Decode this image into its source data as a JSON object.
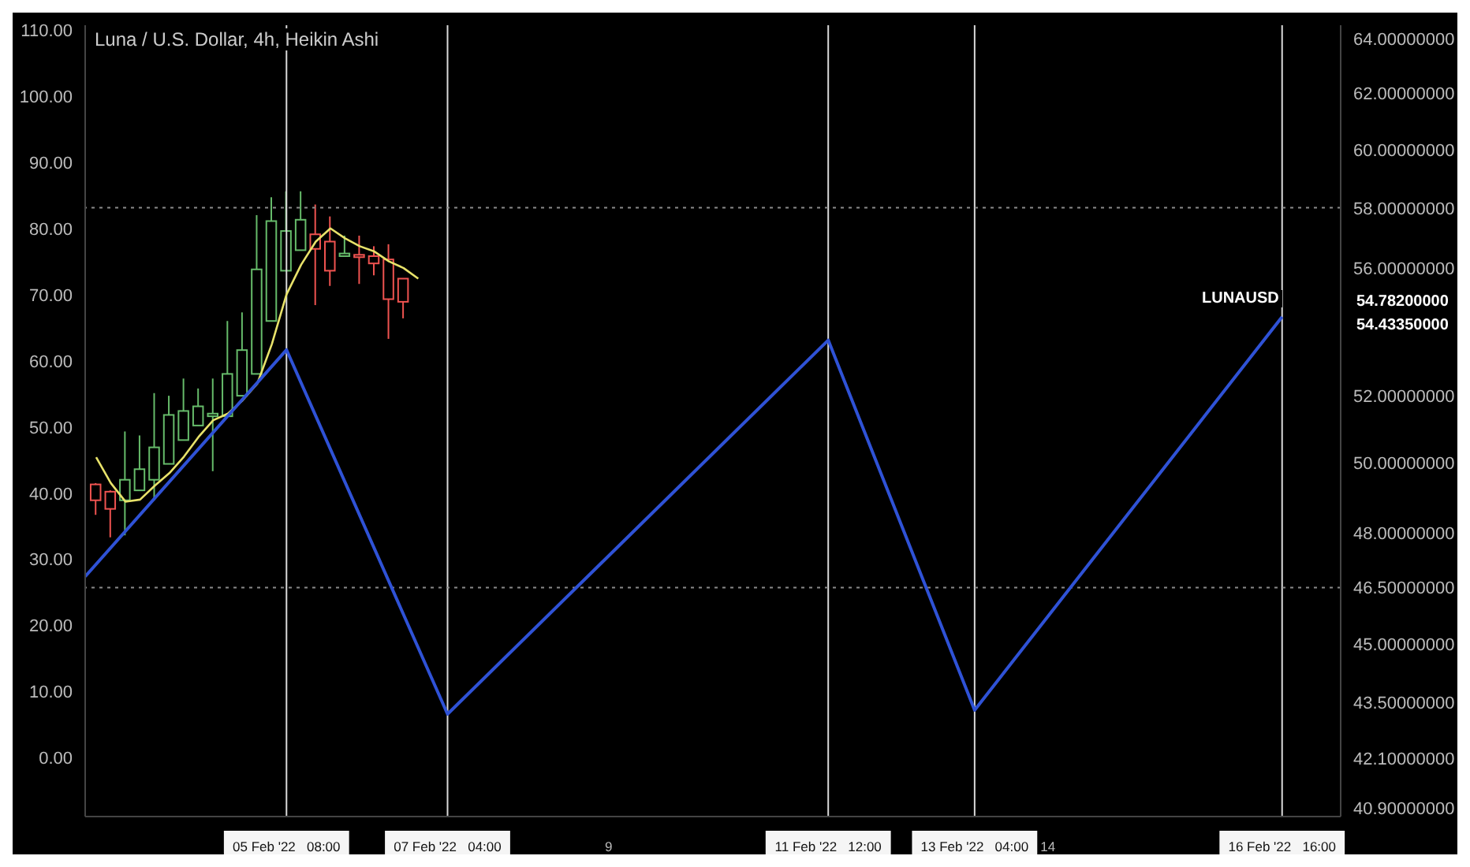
{
  "chart_data": {
    "type": "candlestick",
    "title": "Luna / U.S. Dollar, 4h, Heikin Ashi",
    "series": [
      {
        "x": [
          "2022-02-03T04:00",
          "2022-02-03T08:00",
          "2022-02-03T12:00",
          "2022-02-03T16:00",
          "2022-02-03T20:00",
          "2022-02-04T00:00",
          "2022-02-04T04:00",
          "2022-02-04T08:00",
          "2022-02-04T12:00",
          "2022-02-04T16:00",
          "2022-02-04T20:00",
          "2022-02-05T00:00",
          "2022-02-05T04:00",
          "2022-02-05T08:00",
          "2022-02-05T12:00",
          "2022-02-05T16:00",
          "2022-02-05T20:00",
          "2022-02-06T00:00",
          "2022-02-06T04:00",
          "2022-02-06T08:00",
          "2022-02-06T12:00",
          "2022-02-06T16:00"
        ],
        "ohlc": [
          [
            41.3,
            41.5,
            36.7,
            38.9
          ],
          [
            40.2,
            40.4,
            33.3,
            37.6
          ],
          [
            38.9,
            49.3,
            33.6,
            42.0
          ],
          [
            40.4,
            48.7,
            40.4,
            43.6
          ],
          [
            42.0,
            55.1,
            38.9,
            46.9
          ],
          [
            44.4,
            54.7,
            44.4,
            51.8
          ],
          [
            48.0,
            57.3,
            48.0,
            52.4
          ],
          [
            50.2,
            55.8,
            50.2,
            53.1
          ],
          [
            51.6,
            57.3,
            43.3,
            52.0
          ],
          [
            51.6,
            66.0,
            51.6,
            58.0
          ],
          [
            54.7,
            67.3,
            54.7,
            61.6
          ],
          [
            58.0,
            82.0,
            58.0,
            73.8
          ],
          [
            66.0,
            84.7,
            66.0,
            81.1
          ],
          [
            73.6,
            85.6,
            73.6,
            79.6
          ],
          [
            76.7,
            85.6,
            76.7,
            81.3
          ],
          [
            79.1,
            83.6,
            68.4,
            76.9
          ],
          [
            78.0,
            81.8,
            71.3,
            73.6
          ],
          [
            75.8,
            78.9,
            75.8,
            76.2
          ],
          [
            76.0,
            78.9,
            71.6,
            75.8
          ],
          [
            75.8,
            77.3,
            72.9,
            74.7
          ],
          [
            75.3,
            77.6,
            63.3,
            69.3
          ],
          [
            72.4,
            72.4,
            66.4,
            68.9
          ]
        ],
        "colors": [
          "#ef5350",
          "#ef5350",
          "#66bb6a",
          "#66bb6a",
          "#66bb6a",
          "#66bb6a",
          "#66bb6a",
          "#66bb6a",
          "#66bb6a",
          "#66bb6a",
          "#66bb6a",
          "#66bb6a",
          "#66bb6a",
          "#66bb6a",
          "#66bb6a",
          "#ef5350",
          "#ef5350",
          "#66bb6a",
          "#ef5350",
          "#ef5350",
          "#ef5350",
          "#ef5350"
        ]
      },
      {
        "type": "line",
        "color": "#e8e26a",
        "x": [
          "2022-02-03T04:00",
          "2022-02-03T08:00",
          "2022-02-03T12:00",
          "2022-02-03T16:00",
          "2022-02-03T20:00",
          "2022-02-04T00:00",
          "2022-02-04T04:00",
          "2022-02-04T08:00",
          "2022-02-04T12:00",
          "2022-02-04T16:00",
          "2022-02-04T20:00",
          "2022-02-05T00:00",
          "2022-02-05T04:00",
          "2022-02-05T08:00",
          "2022-02-05T12:00",
          "2022-02-05T16:00",
          "2022-02-05T20:00",
          "2022-02-06T00:00",
          "2022-02-06T04:00",
          "2022-02-06T08:00",
          "2022-02-06T12:00",
          "2022-02-06T16:00",
          "2022-02-06T20:00"
        ],
        "values": [
          45.4,
          41.5,
          38.7,
          39.0,
          41.1,
          43.0,
          45.5,
          48.5,
          51.0,
          52.0,
          54.0,
          56.5,
          62.5,
          70.0,
          74.5,
          78.0,
          80.0,
          78.5,
          77.3,
          76.5,
          75.0,
          74.0,
          72.4
        ]
      },
      {
        "type": "line",
        "color": "#2f52d6",
        "axis": "y2",
        "x": [
          "2022-02-03T01:00",
          "2022-02-05T08:00",
          "2022-02-07T04:00",
          "2022-02-11T12:00",
          "2022-02-13T04:00",
          "2022-02-16T16:00"
        ],
        "values": [
          46.8,
          53.4,
          43.2,
          53.7,
          43.3,
          54.4335
        ]
      }
    ],
    "xlim": [
      "2022-02-03T01:00",
      "2022-02-17T08:00"
    ],
    "xticks": [
      {
        "value": "2022-02-05T08:00",
        "label": "05 Feb '22   08:00"
      },
      {
        "value": "2022-02-07T04:00",
        "label": "07 Feb '22   04:00"
      },
      {
        "value": "2022-02-09T00:00",
        "label": "9"
      },
      {
        "value": "2022-02-11T12:00",
        "label": "11 Feb '22   12:00"
      },
      {
        "value": "2022-02-13T04:00",
        "label": "13 Feb '22   04:00"
      },
      {
        "value": "2022-02-14T00:00",
        "label": "14"
      },
      {
        "value": "2022-02-16T16:00",
        "label": "16 Feb '22   16:00"
      }
    ],
    "ylim": [
      -8.9,
      110.7
    ],
    "yticks": [
      {
        "value": 0,
        "label": "0.00"
      },
      {
        "value": 10,
        "label": "10.00"
      },
      {
        "value": 20,
        "label": "20.00"
      },
      {
        "value": 30,
        "label": "30.00"
      },
      {
        "value": 40,
        "label": "40.00"
      },
      {
        "value": 50,
        "label": "50.00"
      },
      {
        "value": 60,
        "label": "60.00"
      },
      {
        "value": 70,
        "label": "70.00"
      },
      {
        "value": 80,
        "label": "80.00"
      },
      {
        "value": 90,
        "label": "90.00"
      },
      {
        "value": 100,
        "label": "100.00"
      },
      {
        "value": 110,
        "label": "110.00"
      }
    ],
    "y2lim": [
      40.7,
      64.5
    ],
    "y2ticks": [
      {
        "value": 40.9,
        "label": "40.90000000"
      },
      {
        "value": 42.1,
        "label": "42.10000000"
      },
      {
        "value": 43.5,
        "label": "43.50000000"
      },
      {
        "value": 45,
        "label": "45.00000000"
      },
      {
        "value": 46.5,
        "label": "46.50000000"
      },
      {
        "value": 48,
        "label": "48.00000000"
      },
      {
        "value": 50,
        "label": "50.00000000"
      },
      {
        "value": 52,
        "label": "52.00000000"
      },
      {
        "value": 56,
        "label": "56.00000000"
      },
      {
        "value": 58,
        "label": "58.00000000"
      },
      {
        "value": 60,
        "label": "60.00000000"
      },
      {
        "value": 62,
        "label": "62.00000000"
      },
      {
        "value": 64,
        "label": "64.00000000"
      }
    ],
    "log": "y2",
    "ref_lines": [
      {
        "axis": "x",
        "value": "2022-02-05T08:00",
        "color": "#d9d9d9"
      },
      {
        "axis": "x",
        "value": "2022-02-07T04:00",
        "color": "#d9d9d9"
      },
      {
        "axis": "x",
        "value": "2022-02-11T12:00",
        "color": "#d9d9d9"
      },
      {
        "axis": "x",
        "value": "2022-02-13T04:00",
        "color": "#d9d9d9"
      },
      {
        "axis": "x",
        "value": "2022-02-16T16:00",
        "color": "#d9d9d9"
      },
      {
        "axis": "y2",
        "value": 58,
        "color": "#8a8a8a",
        "line_style": "dotted"
      },
      {
        "axis": "y2",
        "value": 46.5,
        "color": "#8a8a8a",
        "line_style": "dotted"
      }
    ],
    "annotations": [
      "54.78200000",
      "LUNAUSD",
      "54.43350000"
    ],
    "grid": false,
    "legend": false
  }
}
